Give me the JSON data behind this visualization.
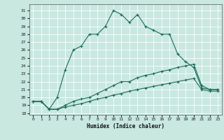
{
  "xlabel": "Humidex (Indice chaleur)",
  "ylabel": "",
  "bg_color": "#c8e8e0",
  "grid_color": "#ffffff",
  "line_color": "#1a6b5a",
  "xlim": [
    -0.5,
    23.5
  ],
  "ylim": [
    17.8,
    31.8
  ],
  "xticks": [
    0,
    1,
    2,
    3,
    4,
    5,
    6,
    7,
    8,
    9,
    10,
    11,
    12,
    13,
    14,
    15,
    16,
    17,
    18,
    19,
    20,
    21,
    22,
    23
  ],
  "yticks": [
    18,
    19,
    20,
    21,
    22,
    23,
    24,
    25,
    26,
    27,
    28,
    29,
    30,
    31
  ],
  "line1_x": [
    0,
    1,
    2,
    3,
    4,
    5,
    6,
    7,
    8,
    9,
    10,
    11,
    12,
    13,
    14,
    15,
    16,
    17,
    18,
    19,
    20,
    21,
    22,
    23
  ],
  "line1_y": [
    19.5,
    19.5,
    18.5,
    20.0,
    23.5,
    26.0,
    26.5,
    28.0,
    28.0,
    29.0,
    31.0,
    30.5,
    29.5,
    30.5,
    29.0,
    28.5,
    28.0,
    28.0,
    25.5,
    24.5,
    23.8,
    21.2,
    21.0,
    21.0
  ],
  "line2_x": [
    0,
    1,
    2,
    3,
    4,
    5,
    6,
    7,
    8,
    9,
    10,
    11,
    12,
    13,
    14,
    15,
    16,
    17,
    18,
    19,
    20,
    21,
    22,
    23
  ],
  "line2_y": [
    19.5,
    19.5,
    18.5,
    18.5,
    19.0,
    19.5,
    19.8,
    20.0,
    20.5,
    21.0,
    21.5,
    22.0,
    22.0,
    22.5,
    22.8,
    23.0,
    23.3,
    23.5,
    23.8,
    24.0,
    24.2,
    21.5,
    21.0,
    21.0
  ],
  "line3_x": [
    0,
    1,
    2,
    3,
    4,
    5,
    6,
    7,
    8,
    9,
    10,
    11,
    12,
    13,
    14,
    15,
    16,
    17,
    18,
    19,
    20,
    21,
    22,
    23
  ],
  "line3_y": [
    19.5,
    19.5,
    18.5,
    18.5,
    18.8,
    19.0,
    19.2,
    19.5,
    19.8,
    20.0,
    20.3,
    20.5,
    20.8,
    21.0,
    21.2,
    21.4,
    21.6,
    21.8,
    22.0,
    22.2,
    22.4,
    21.0,
    20.8,
    20.8
  ],
  "marker": "+",
  "markersize": 3,
  "linewidth": 0.8
}
